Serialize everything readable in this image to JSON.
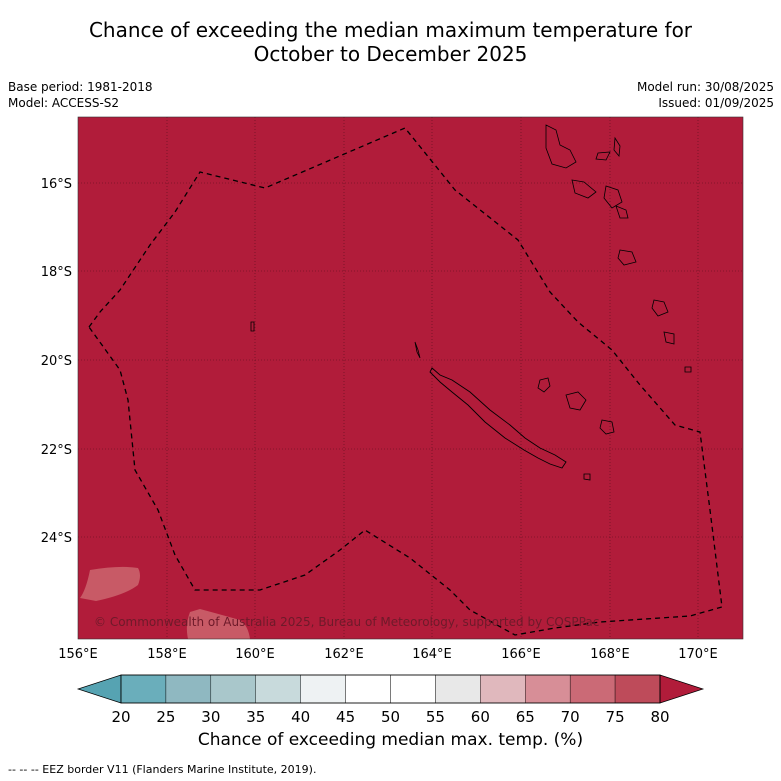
{
  "title_line1": "Chance of exceeding the median maximum temperature for",
  "title_line2": "October to December 2025",
  "base_period": "Base period: 1981-2018",
  "model": "Model: ACCESS-S2",
  "model_run": "Model run: 30/08/2025",
  "issued": "Issued: 01/09/2025",
  "copyright": "© Commonwealth of Australia 2025, Bureau of Meteorology, supported by COSPPac",
  "lat_labels": [
    "16°S",
    "18°S",
    "20°S",
    "22°S",
    "24°S"
  ],
  "lon_labels": [
    "156°E",
    "158°E",
    "160°E",
    "162°E",
    "164°E",
    "166°E",
    "168°E",
    "170°E"
  ],
  "colorbar": {
    "title": "Chance of exceeding median max. temp. (%)",
    "ticks": [
      "20",
      "25",
      "30",
      "35",
      "40",
      "45",
      "50",
      "55",
      "60",
      "65",
      "70",
      "75",
      "80"
    ],
    "colors": [
      "#56a3b2",
      "#6aaebb",
      "#8fb8c1",
      "#a9c7cb",
      "#c8dadc",
      "#eef2f3",
      "#ffffff",
      "#ffffff",
      "#e8e8e8",
      "#e0b8bd",
      "#d78e97",
      "#cb6a76",
      "#be4b5a",
      "#b11c3a"
    ]
  },
  "map": {
    "fill_color": "#b11c3a",
    "light_patch_color": "#c85a66"
  },
  "footnote": "--  --  -- EEZ border V11 (Flanders Marine Institute, 2019)."
}
